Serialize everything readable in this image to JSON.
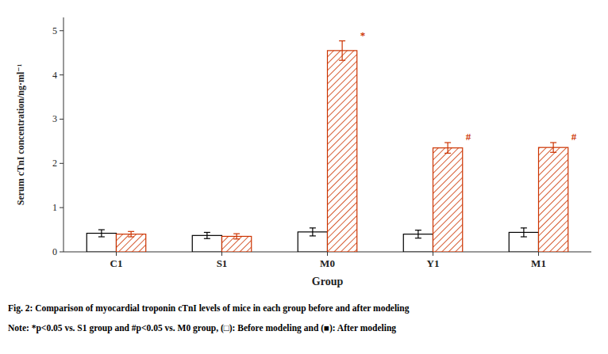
{
  "chart_data": {
    "type": "bar",
    "categories": [
      "C1",
      "S1",
      "M0",
      "Y1",
      "M1"
    ],
    "series": [
      {
        "color": "#000000",
        "values": [
          0.42,
          0.37,
          0.45,
          0.4,
          0.44
        ],
        "errors": [
          0.08,
          0.07,
          0.09,
          0.09,
          0.1
        ]
      },
      {
        "color": "#cc3300",
        "values": [
          0.4,
          0.35,
          4.55,
          2.35,
          2.36
        ],
        "errors": [
          0.06,
          0.06,
          0.22,
          0.12,
          0.11
        ],
        "annotations": [
          null,
          null,
          "*",
          "#",
          "#"
        ]
      }
    ],
    "ylim": [
      0,
      5.3
    ],
    "yticks": [
      0,
      1,
      2,
      3,
      4,
      5
    ],
    "ylabel": "Serum cTnI concentration/ng·ml⁻¹",
    "xlabel": "Group",
    "caption": "Fig. 2: Comparison of myocardial troponin cTnI levels of mice in each group before and after modeling",
    "note": "Note: *p<0.05 vs. S1 group and #p<0.05 vs. M0 group, (□): Before modeling and (■): After modeling"
  }
}
